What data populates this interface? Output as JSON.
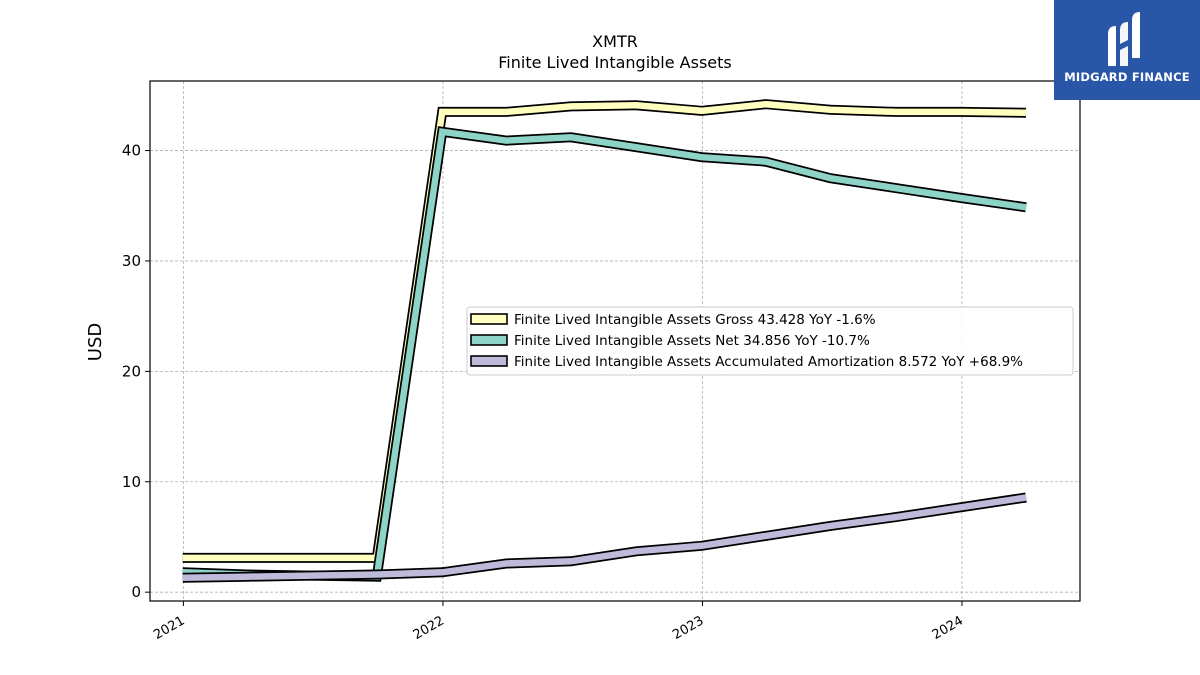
{
  "brand": {
    "name": "MIDGARD FINANCE",
    "bg_color": "#2a56a8"
  },
  "chart_data": {
    "type": "line",
    "title": "XMTR",
    "subtitle": "Finite Lived Intangible Assets",
    "xlabel": "",
    "ylabel": "USD",
    "xlim": [
      "2020-11-15",
      "2024-06-15"
    ],
    "ylim": [
      -0.8,
      46.3
    ],
    "x_ticks": [
      "2021",
      "2022",
      "2023",
      "2024"
    ],
    "y_ticks": [
      0,
      10,
      20,
      30,
      40
    ],
    "grid": true,
    "legend_position": "center-right",
    "series": [
      {
        "name": "Finite Lived Intangible Assets Gross",
        "legend_label": "Finite Lived Intangible Assets Gross  43.428 YoY -1.6%",
        "color": "#ffffbf",
        "points": [
          [
            "2020-12-31",
            3.1
          ],
          [
            "2021-03-31",
            3.1
          ],
          [
            "2021-06-30",
            3.1
          ],
          [
            "2021-09-30",
            3.1
          ],
          [
            "2021-12-31",
            43.5
          ],
          [
            "2022-03-31",
            43.5
          ],
          [
            "2022-06-30",
            44.0
          ],
          [
            "2022-09-30",
            44.1
          ],
          [
            "2022-12-31",
            43.6
          ],
          [
            "2023-03-31",
            44.2
          ],
          [
            "2023-06-30",
            43.7
          ],
          [
            "2023-09-30",
            43.5
          ],
          [
            "2023-12-31",
            43.5
          ],
          [
            "2024-03-31",
            43.428
          ]
        ]
      },
      {
        "name": "Finite Lived Intangible Assets Net",
        "legend_label": "Finite Lived Intangible Assets Net  34.856 YoY -10.7%",
        "color": "#8dd3c7",
        "points": [
          [
            "2020-12-31",
            1.8
          ],
          [
            "2021-03-31",
            1.6
          ],
          [
            "2021-06-30",
            1.5
          ],
          [
            "2021-09-30",
            1.4
          ],
          [
            "2021-12-31",
            41.7
          ],
          [
            "2022-03-31",
            40.9
          ],
          [
            "2022-06-30",
            41.2
          ],
          [
            "2022-09-30",
            40.3
          ],
          [
            "2022-12-31",
            39.4
          ],
          [
            "2023-03-31",
            39.0
          ],
          [
            "2023-06-30",
            37.5
          ],
          [
            "2023-09-30",
            36.6
          ],
          [
            "2023-12-31",
            35.7
          ],
          [
            "2024-03-31",
            34.856
          ]
        ]
      },
      {
        "name": "Finite Lived Intangible Assets Accumulated Amortization",
        "legend_label": "Finite Lived Intangible Assets Accumulated Amortization  8.572 YoY +68.9%",
        "color": "#bebada",
        "points": [
          [
            "2020-12-31",
            1.3
          ],
          [
            "2021-03-31",
            1.4
          ],
          [
            "2021-06-30",
            1.5
          ],
          [
            "2021-09-30",
            1.6
          ],
          [
            "2021-12-31",
            1.8
          ],
          [
            "2022-03-31",
            2.6
          ],
          [
            "2022-06-30",
            2.8
          ],
          [
            "2022-09-30",
            3.7
          ],
          [
            "2022-12-31",
            4.2
          ],
          [
            "2023-03-31",
            5.1
          ],
          [
            "2023-06-30",
            6.0
          ],
          [
            "2023-09-30",
            6.8
          ],
          [
            "2023-12-31",
            7.7
          ],
          [
            "2024-03-31",
            8.572
          ]
        ]
      }
    ]
  }
}
